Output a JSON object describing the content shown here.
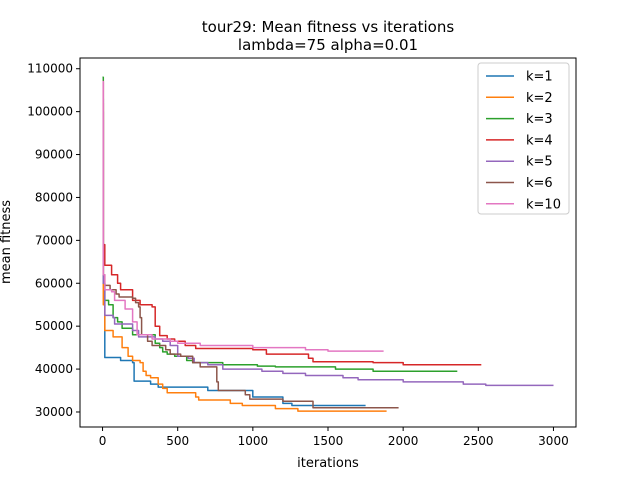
{
  "chart_data": {
    "type": "line",
    "title": "tour29: Mean fitness vs iterations",
    "subtitle": "lambda=75 alpha=0.01",
    "xlabel": "iterations",
    "ylabel": "mean fitness",
    "xlim": [
      -150,
      3150
    ],
    "ylim": [
      26500,
      112500
    ],
    "xticks": [
      0,
      500,
      1000,
      1500,
      2000,
      2500,
      3000
    ],
    "yticks": [
      30000,
      40000,
      50000,
      60000,
      70000,
      80000,
      90000,
      100000,
      110000
    ],
    "grid": false,
    "legend_position": "top-right",
    "series": [
      {
        "name": "k=1",
        "color": "#1f77b4",
        "points": [
          [
            0,
            103000
          ],
          [
            5,
            60000
          ],
          [
            15,
            42700
          ],
          [
            100,
            42700
          ],
          [
            120,
            42000
          ],
          [
            200,
            41500
          ],
          [
            210,
            37200
          ],
          [
            300,
            37200
          ],
          [
            320,
            36500
          ],
          [
            370,
            35800
          ],
          [
            680,
            35800
          ],
          [
            700,
            35000
          ],
          [
            900,
            35000
          ],
          [
            1000,
            33500
          ],
          [
            1180,
            33500
          ],
          [
            1200,
            32000
          ],
          [
            1260,
            31500
          ],
          [
            1750,
            31500
          ]
        ]
      },
      {
        "name": "k=2",
        "color": "#ff7f0e",
        "points": [
          [
            0,
            102000
          ],
          [
            5,
            55000
          ],
          [
            15,
            49000
          ],
          [
            60,
            49000
          ],
          [
            70,
            47500
          ],
          [
            130,
            45000
          ],
          [
            170,
            43000
          ],
          [
            200,
            42000
          ],
          [
            250,
            41500
          ],
          [
            270,
            39500
          ],
          [
            290,
            38500
          ],
          [
            320,
            38000
          ],
          [
            370,
            36500
          ],
          [
            400,
            35500
          ],
          [
            430,
            34500
          ],
          [
            600,
            34500
          ],
          [
            620,
            33500
          ],
          [
            640,
            32800
          ],
          [
            800,
            32800
          ],
          [
            850,
            32000
          ],
          [
            930,
            31500
          ],
          [
            1110,
            31500
          ],
          [
            1150,
            30800
          ],
          [
            1300,
            30200
          ],
          [
            1890,
            30200
          ]
        ]
      },
      {
        "name": "k=3",
        "color": "#2ca02c",
        "points": [
          [
            0,
            108000
          ],
          [
            5,
            60000
          ],
          [
            15,
            56000
          ],
          [
            40,
            55000
          ],
          [
            70,
            52000
          ],
          [
            100,
            51000
          ],
          [
            130,
            49500
          ],
          [
            180,
            49500
          ],
          [
            200,
            48000
          ],
          [
            320,
            48000
          ],
          [
            350,
            46000
          ],
          [
            380,
            45000
          ],
          [
            400,
            44000
          ],
          [
            430,
            43500
          ],
          [
            480,
            43000
          ],
          [
            560,
            42000
          ],
          [
            600,
            41500
          ],
          [
            800,
            41000
          ],
          [
            1030,
            40700
          ],
          [
            1150,
            40500
          ],
          [
            1550,
            40000
          ],
          [
            1800,
            39500
          ],
          [
            2360,
            39500
          ]
        ]
      },
      {
        "name": "k=4",
        "color": "#d62728",
        "points": [
          [
            0,
            107000
          ],
          [
            5,
            69000
          ],
          [
            15,
            64200
          ],
          [
            50,
            64200
          ],
          [
            60,
            62000
          ],
          [
            100,
            60000
          ],
          [
            120,
            58500
          ],
          [
            200,
            56000
          ],
          [
            250,
            55000
          ],
          [
            330,
            54500
          ],
          [
            350,
            50000
          ],
          [
            380,
            47800
          ],
          [
            430,
            47000
          ],
          [
            480,
            46500
          ],
          [
            550,
            45500
          ],
          [
            600,
            45500
          ],
          [
            620,
            44800
          ],
          [
            1000,
            44500
          ],
          [
            1090,
            43500
          ],
          [
            1370,
            42500
          ],
          [
            1400,
            41700
          ],
          [
            1800,
            41500
          ],
          [
            2000,
            41000
          ],
          [
            2520,
            41000
          ]
        ]
      },
      {
        "name": "k=5",
        "color": "#9467bd",
        "points": [
          [
            0,
            98000
          ],
          [
            5,
            60000
          ],
          [
            15,
            52500
          ],
          [
            70,
            52000
          ],
          [
            80,
            50500
          ],
          [
            200,
            49000
          ],
          [
            240,
            47500
          ],
          [
            350,
            47000
          ],
          [
            400,
            46500
          ],
          [
            450,
            45500
          ],
          [
            500,
            43000
          ],
          [
            570,
            42500
          ],
          [
            610,
            41500
          ],
          [
            700,
            41000
          ],
          [
            800,
            40000
          ],
          [
            1060,
            39500
          ],
          [
            1200,
            39000
          ],
          [
            1350,
            38500
          ],
          [
            1600,
            38000
          ],
          [
            1700,
            37500
          ],
          [
            2000,
            37000
          ],
          [
            2400,
            36500
          ],
          [
            2550,
            36200
          ],
          [
            3000,
            36200
          ]
        ]
      },
      {
        "name": "k=6",
        "color": "#8c564b",
        "points": [
          [
            0,
            100000
          ],
          [
            5,
            62000
          ],
          [
            15,
            59500
          ],
          [
            50,
            58500
          ],
          [
            90,
            57500
          ],
          [
            110,
            56800
          ],
          [
            200,
            56500
          ],
          [
            220,
            55500
          ],
          [
            240,
            54500
          ],
          [
            250,
            52000
          ],
          [
            260,
            48000
          ],
          [
            300,
            46500
          ],
          [
            330,
            45500
          ],
          [
            420,
            44500
          ],
          [
            450,
            43500
          ],
          [
            520,
            43000
          ],
          [
            600,
            41500
          ],
          [
            650,
            40500
          ],
          [
            740,
            40500
          ],
          [
            760,
            37000
          ],
          [
            770,
            35000
          ],
          [
            950,
            34000
          ],
          [
            980,
            33000
          ],
          [
            1200,
            32500
          ],
          [
            1400,
            31000
          ],
          [
            1970,
            31000
          ]
        ]
      },
      {
        "name": "k=10",
        "color": "#e377c2",
        "points": [
          [
            0,
            107000
          ],
          [
            5,
            62000
          ],
          [
            15,
            58500
          ],
          [
            60,
            58000
          ],
          [
            80,
            56000
          ],
          [
            150,
            54000
          ],
          [
            200,
            51000
          ],
          [
            230,
            48000
          ],
          [
            330,
            47000
          ],
          [
            450,
            46500
          ],
          [
            500,
            46000
          ],
          [
            650,
            45500
          ],
          [
            1000,
            45000
          ],
          [
            1350,
            44500
          ],
          [
            1500,
            44200
          ],
          [
            1870,
            44200
          ]
        ]
      }
    ]
  }
}
